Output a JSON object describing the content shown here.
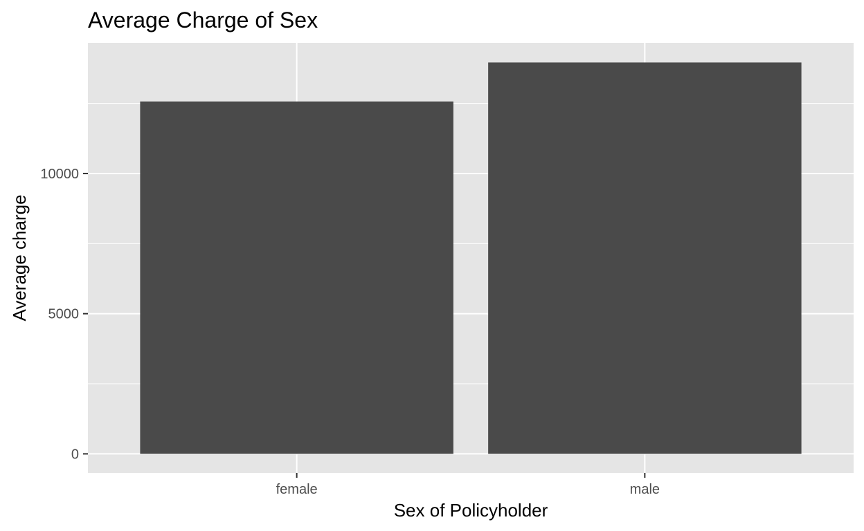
{
  "chart_data": {
    "type": "bar",
    "title": "Average Charge of Sex",
    "xlabel": "Sex of Policyholder",
    "ylabel": "Average charge",
    "categories": [
      "female",
      "male"
    ],
    "values": [
      12570,
      13960
    ],
    "ylim": [
      -680,
      14660
    ],
    "yticks": [
      0,
      5000,
      10000
    ],
    "ytick_labels": [
      "0",
      "5000",
      "10000"
    ],
    "grid": true,
    "legend": "none",
    "colors": {
      "bar": "#4a4a4a",
      "panel": "#e5e5e5",
      "grid": "#ffffff",
      "tick_text": "#4d4d4d",
      "tick_mark": "#333333"
    }
  }
}
